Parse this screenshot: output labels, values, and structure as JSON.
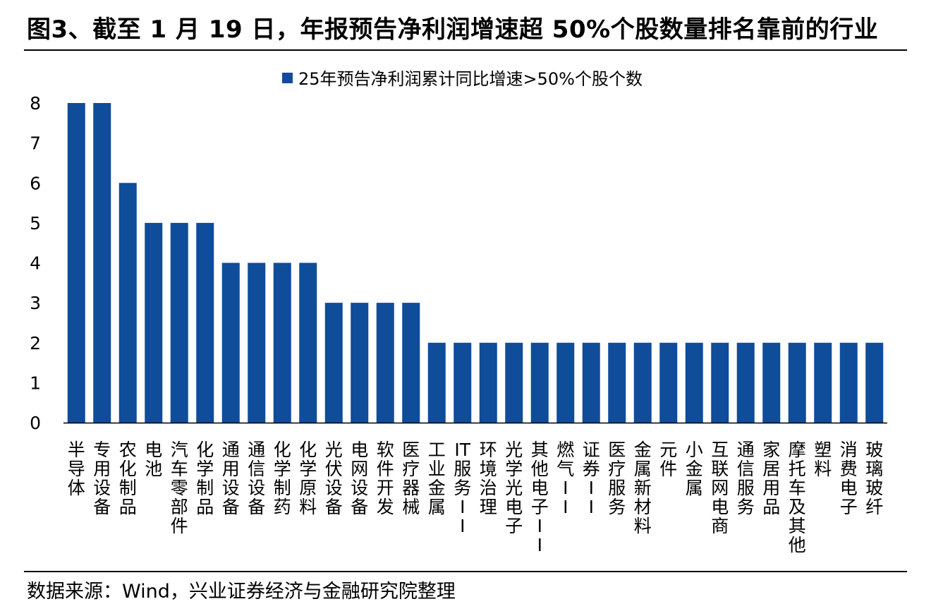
{
  "page": {
    "title": "图3、截至 1 月 19 日，年报预告净利润增速超  50%个股数量排名靠前的行业",
    "source": "数据来源：Wind，兴业证券经济与金融研究院整理"
  },
  "colors": {
    "bar": "#0F4C9A",
    "axis": "#000000",
    "rule": "#000000"
  },
  "chart_data": {
    "type": "bar",
    "categories": [
      "半导体",
      "专用设备",
      "农化制品",
      "电池",
      "汽车零部件",
      "化学制品",
      "通用设备",
      "通信设备",
      "化学制药",
      "化学原料",
      "光伏设备",
      "电网设备",
      "软件开发",
      "医疗器械",
      "工业金属",
      "IT服务II",
      "环境治理",
      "光学光电子",
      "其他电子II",
      "燃气II",
      "证券II",
      "医疗服务",
      "金属新材料",
      "元件",
      "小金属",
      "互联网电商",
      "通信服务",
      "家居用品",
      "摩托车及其他",
      "塑料",
      "消费电子",
      "玻璃玻纤"
    ],
    "series": [
      {
        "name": "25年预告净利润累计同比增速>50%个股个数",
        "values": [
          8,
          8,
          6,
          5,
          5,
          5,
          4,
          4,
          4,
          4,
          3,
          3,
          3,
          3,
          2,
          2,
          2,
          2,
          2,
          2,
          2,
          2,
          2,
          2,
          2,
          2,
          2,
          2,
          2,
          2,
          2,
          2
        ]
      }
    ],
    "yticks": [
      "0",
      "1",
      "2",
      "3",
      "4",
      "5",
      "6",
      "7",
      "8"
    ],
    "ylim": [
      0,
      8
    ],
    "legend": "top-center",
    "grid": false
  }
}
